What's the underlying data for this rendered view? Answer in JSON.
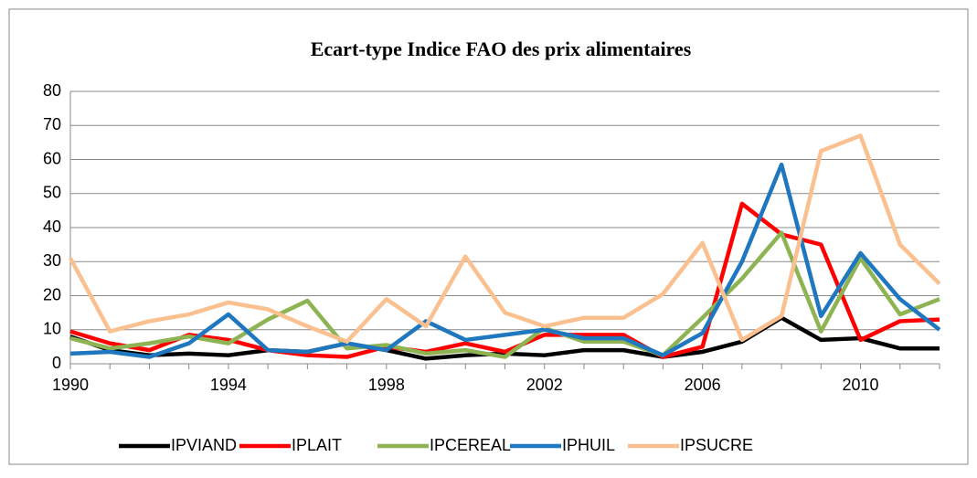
{
  "chart_data": {
    "type": "line",
    "title": "Ecart-type Indice FAO des prix alimentaires",
    "x": [
      1990,
      1991,
      1992,
      1993,
      1994,
      1995,
      1996,
      1997,
      1998,
      1999,
      2000,
      2001,
      2002,
      2003,
      2004,
      2005,
      2006,
      2007,
      2008,
      2009,
      2010,
      2011,
      2012
    ],
    "series": [
      {
        "name": "IPVIAND",
        "color": "#000000",
        "values": [
          8,
          4,
          2.5,
          3,
          2.5,
          4,
          3.5,
          6,
          4,
          1.5,
          2.5,
          3,
          2.5,
          4,
          4,
          2,
          3.5,
          6.5,
          13.5,
          7,
          7.5,
          4.5,
          4.5
        ]
      },
      {
        "name": "IPLAIT",
        "color": "#ff0000",
        "values": [
          9.5,
          6,
          4,
          8.5,
          7,
          4,
          2.5,
          2,
          5,
          3.5,
          6,
          3.5,
          8.5,
          8.5,
          8.5,
          2,
          5,
          47,
          38,
          35,
          7,
          12.5,
          13
        ]
      },
      {
        "name": "IPCEREAL",
        "color": "#8db352",
        "values": [
          7.5,
          4.5,
          6,
          8,
          6,
          13,
          18.5,
          4.5,
          5.5,
          3,
          4,
          2,
          10.5,
          6.5,
          6.5,
          2.5,
          13.5,
          25,
          38.5,
          9.5,
          31,
          14.5,
          19
        ]
      },
      {
        "name": "IPHUIL",
        "color": "#1f77c0",
        "values": [
          3,
          3.5,
          2,
          6,
          14.5,
          4,
          3.5,
          6,
          4,
          12.5,
          7,
          8.5,
          10,
          7.5,
          7.5,
          2.5,
          9,
          30,
          58.5,
          14,
          32.5,
          19,
          10
        ]
      },
      {
        "name": "IPSUCRE",
        "color": "#fac090",
        "values": [
          31,
          9.5,
          12.5,
          14.5,
          18,
          16,
          11,
          6.5,
          19,
          11,
          31.5,
          15,
          11,
          13.5,
          13.5,
          20.5,
          35.5,
          7,
          14,
          62.5,
          67,
          35,
          23.5
        ]
      }
    ],
    "xlim": [
      1990,
      2012
    ],
    "xticks": [
      1990,
      1994,
      1998,
      2002,
      2006,
      2010
    ],
    "ylim": [
      0,
      80
    ],
    "yticks": [
      0,
      10,
      20,
      30,
      40,
      50,
      60,
      70,
      80
    ],
    "grid": true,
    "legend": "bottom"
  }
}
